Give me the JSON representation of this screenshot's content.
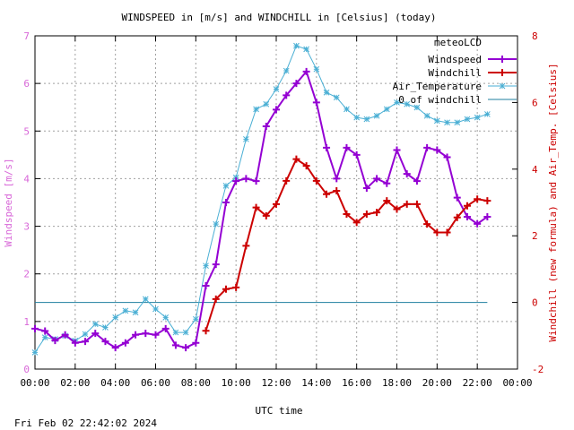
{
  "chart_data": {
    "type": "line",
    "title": "WINDSPEED in [m/s] and WINDCHILL in [Celsius] (today)",
    "xlabel": "UTC time",
    "ylabel": "Windspeed [m/s]",
    "y2label": "Windchill (new formula) and Air_Temp. [Celsius]",
    "timestamp": "Fri Feb 02 22:42:02 2024",
    "legend_title": "meteoLCD",
    "legend_position": "top-right",
    "grid": true,
    "xlim": [
      0,
      24
    ],
    "ylim": [
      0,
      7
    ],
    "y2lim": [
      -2,
      8
    ],
    "x_ticks": [
      "00:00",
      "02:00",
      "04:00",
      "06:00",
      "08:00",
      "10:00",
      "12:00",
      "14:00",
      "16:00",
      "18:00",
      "20:00",
      "22:00",
      "00:00"
    ],
    "y_ticks": [
      "0",
      "1",
      "2",
      "3",
      "4",
      "5",
      "6",
      "7"
    ],
    "y2_ticks": [
      "-2",
      "0",
      "2",
      "4",
      "6",
      "8"
    ],
    "series": [
      {
        "name": "Windspeed",
        "axis": "left",
        "color": "#9400d3",
        "marker": "plus",
        "x": [
          0,
          0.5,
          1,
          1.5,
          2,
          2.5,
          3,
          3.5,
          4,
          4.5,
          5,
          5.5,
          6,
          6.5,
          7,
          7.5,
          8,
          8.5,
          9,
          9.5,
          10,
          10.5,
          11,
          11.5,
          12,
          12.5,
          13,
          13.5,
          14,
          14.5,
          15,
          15.5,
          16,
          16.5,
          17,
          17.5,
          18,
          18.5,
          19,
          19.5,
          20,
          20.5,
          21,
          21.5,
          22,
          22.5
        ],
        "values": [
          0.85,
          0.8,
          0.6,
          0.72,
          0.55,
          0.58,
          0.75,
          0.58,
          0.45,
          0.55,
          0.72,
          0.75,
          0.72,
          0.85,
          0.5,
          0.45,
          0.55,
          1.75,
          2.2,
          3.5,
          3.95,
          4.0,
          3.95,
          5.1,
          5.45,
          5.75,
          6.0,
          6.25,
          5.6,
          4.65,
          4.0,
          4.65,
          4.5,
          3.8,
          4.0,
          3.9,
          4.6,
          4.1,
          3.95,
          4.65,
          4.6,
          4.45,
          3.6,
          3.2,
          3.05,
          3.2
        ]
      },
      {
        "name": "Windchill",
        "axis": "right",
        "color": "#cc0000",
        "marker": "plus",
        "x": [
          8.5,
          9,
          9.5,
          10,
          10.5,
          11,
          11.5,
          12,
          12.5,
          13,
          13.5,
          14,
          14.5,
          15,
          15.5,
          16,
          16.5,
          17,
          17.5,
          18,
          18.5,
          19,
          19.5,
          20,
          20.5,
          21,
          21.5,
          22,
          22.5
        ],
        "values": [
          -0.85,
          0.1,
          0.4,
          0.45,
          1.7,
          2.85,
          2.6,
          2.95,
          3.65,
          4.3,
          4.1,
          3.65,
          3.25,
          3.35,
          2.65,
          2.4,
          2.65,
          2.7,
          3.05,
          2.8,
          2.95,
          2.95,
          2.35,
          2.1,
          2.1,
          2.55,
          2.9,
          3.1,
          3.05
        ]
      },
      {
        "name": "Air_Temperature",
        "axis": "right",
        "color": "#4aafd4",
        "marker": "star",
        "x": [
          0,
          0.5,
          1,
          1.5,
          2,
          2.5,
          3,
          3.5,
          4,
          4.5,
          5,
          5.5,
          6,
          6.5,
          7,
          7.5,
          8,
          8.5,
          9,
          9.5,
          10,
          10.5,
          11,
          11.5,
          12,
          12.5,
          13,
          13.5,
          14,
          14.5,
          15,
          15.5,
          16,
          16.5,
          17,
          17.5,
          18,
          18.5,
          19,
          19.5,
          20,
          20.5,
          21,
          21.5,
          22,
          22.5
        ],
        "values": [
          -1.5,
          -1.05,
          -1.1,
          -1.0,
          -1.15,
          -0.95,
          -0.65,
          -0.75,
          -0.45,
          -0.25,
          -0.3,
          0.1,
          -0.2,
          -0.45,
          -0.9,
          -0.9,
          -0.5,
          1.1,
          2.35,
          3.5,
          3.75,
          4.9,
          5.8,
          5.95,
          6.4,
          6.95,
          7.7,
          7.6,
          7.0,
          6.3,
          6.15,
          5.8,
          5.55,
          5.5,
          5.6,
          5.8,
          6.0,
          5.95,
          5.85,
          5.6,
          5.45,
          5.4,
          5.4,
          5.5,
          5.55,
          5.65
        ]
      },
      {
        "name": "0 of windchill",
        "axis": "right",
        "color": "#1f7f9f",
        "marker": "none",
        "x": [
          0,
          22.5
        ],
        "values": [
          0,
          0
        ]
      }
    ]
  }
}
